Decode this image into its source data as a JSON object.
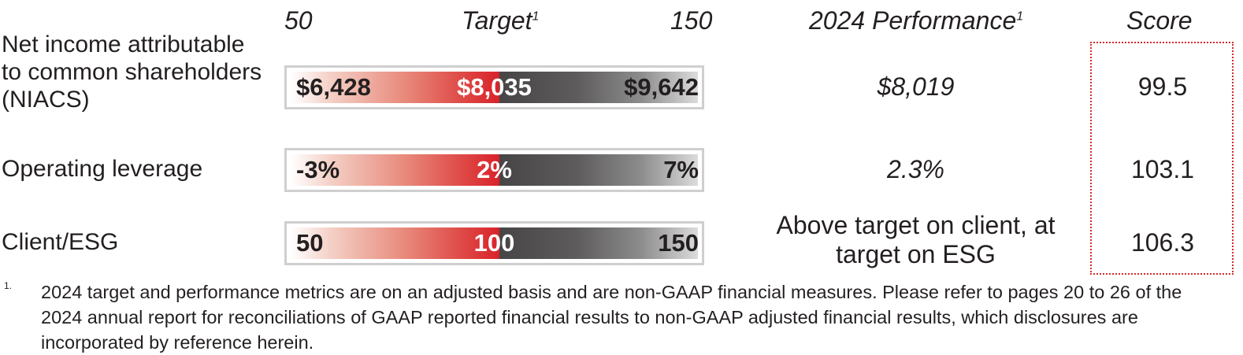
{
  "header": {
    "low": "50",
    "target": "Target",
    "target_sup": "1",
    "high": "150",
    "performance": "2024 Performance",
    "performance_sup": "1",
    "score": "Score"
  },
  "rows": [
    {
      "metric": "Net income attributable to common shareholders (NIACS)",
      "bar_low": "$6,428",
      "bar_target": "$8,035",
      "bar_high": "$9,642",
      "performance": "$8,019",
      "score": "99.5"
    },
    {
      "metric": "Operating leverage",
      "bar_low": "-3%",
      "bar_target": "2%",
      "bar_high": "7%",
      "performance": "2.3%",
      "score": "103.1"
    },
    {
      "metric": "Client/ESG",
      "bar_low": "50",
      "bar_target": "100",
      "bar_high": "150",
      "performance": "Above target on client, at target on ESG",
      "score": "106.3"
    }
  ],
  "footnote": {
    "marker": "1.",
    "text": "2024 target and performance metrics are on an adjusted basis and are non-GAAP financial measures. Please refer to pages 20 to 26 of the 2024 annual report for reconciliations of GAAP reported financial results to non-GAAP adjusted financial results, which disclosures are incorporated by reference herein."
  },
  "colors": {
    "accent_red": "#d9232b",
    "dark_gray": "#474545",
    "border_gray": "#cfcfcf",
    "score_box_red": "#d62b2b"
  }
}
